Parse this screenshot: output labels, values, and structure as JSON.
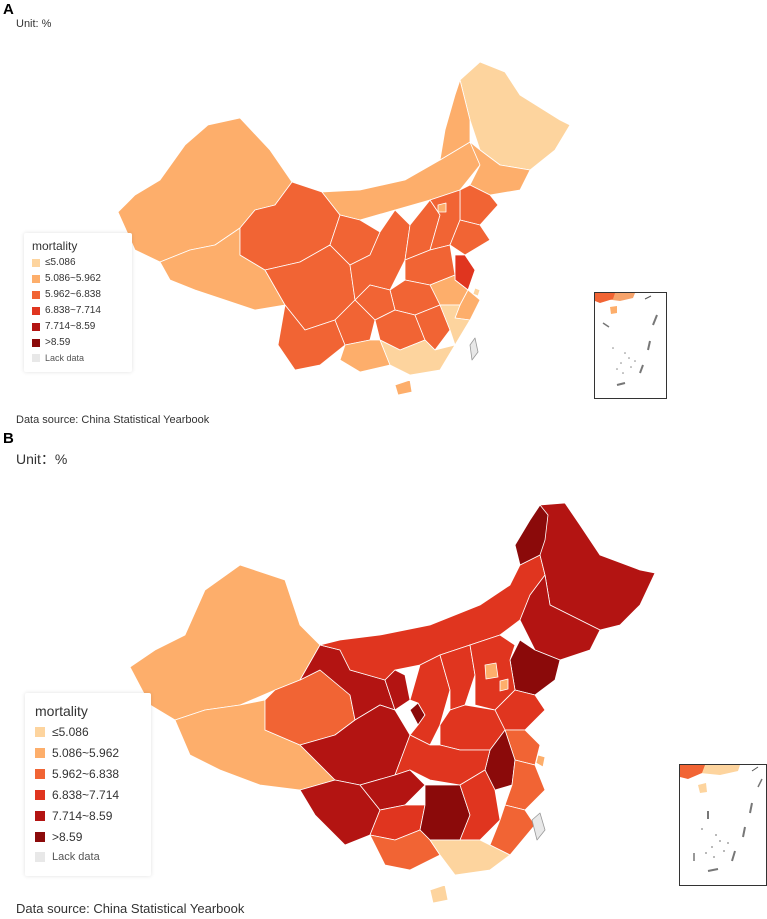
{
  "panel_a": {
    "letter": "A",
    "unit": "Unit: %",
    "source": "Data source: China Statistical Yearbook",
    "legend_title": "mortality"
  },
  "panel_b": {
    "letter": "B",
    "unit": "Unit：%",
    "source": "Data source: China Statistical Yearbook",
    "legend_title": "mortality"
  },
  "legend_classes": [
    {
      "label": "≤5.086",
      "color": "#fdd49e"
    },
    {
      "label": "5.086~5.962",
      "color": "#fdae6b"
    },
    {
      "label": "5.962~6.838",
      "color": "#f16434"
    },
    {
      "label": "6.838~7.714",
      "color": "#e0351f"
    },
    {
      "label": "7.714~8.59",
      "color": "#b31412"
    },
    {
      "label": ">8.59",
      "color": "#8b0a0a"
    }
  ],
  "lack_data": {
    "label": "Lack data",
    "color": "#e8e8e8"
  }
}
